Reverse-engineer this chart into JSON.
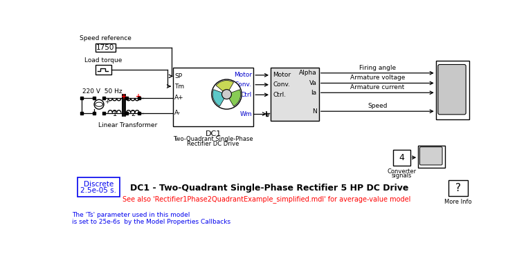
{
  "title": "DC1 - Two-Quadrant Single-Phase Rectifier 5 HP DC Drive",
  "see_also": "See also 'Rectifier1Phase2QuadrantExample_simplified.mdl' for average-value model",
  "ts_note_line1": "The 'Ts' parameter used in this model",
  "ts_note_line2": "is set to 25e-6s  by the Model Properties Callbacks",
  "fig_bg": "#ffffff",
  "speed_ref_label": "Speed reference",
  "speed_ref_val": "1750",
  "load_torque_label": "Load torque",
  "voltage_label": "220 V  50 Hz",
  "transformer_label": "Linear Transformer",
  "dc1_label": "DC1",
  "dc1_sub1": "Two-Quadrant Single-Phase",
  "dc1_sub2": "Rectifier DC Drive",
  "port_sp": "SP",
  "port_tm": "Tm",
  "port_ap": "A+",
  "port_am": "A-",
  "port_motor": "Motor",
  "port_conv": "Conv.",
  "port_ctrl": "Ctrl",
  "port_wm": "Wm",
  "mux_motor": "Motor",
  "mux_conv": "Conv.",
  "mux_ctrl": "Ctrl.",
  "mux_alpha": "Alpha",
  "mux_va": "Va",
  "mux_ia": "Ia",
  "mux_n": "N",
  "label_firing": "Firing angle",
  "label_va": "Armature voltage",
  "label_ia": "Armature current",
  "label_speed": "Speed",
  "discrete_line1": "Discrete",
  "discrete_line2": "2.5e-05 s.",
  "conv_gain": "4",
  "conv_signals": "Converter\nsignals",
  "more_info": "More Info"
}
